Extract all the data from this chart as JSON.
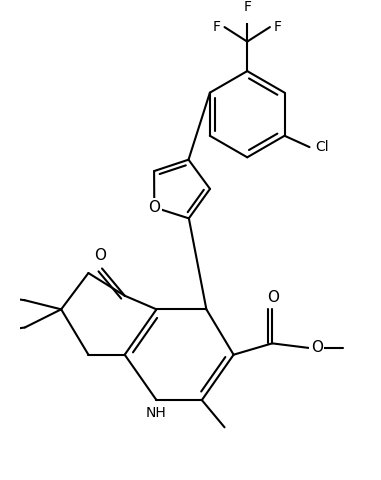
{
  "background_color": "#ffffff",
  "line_color": "#000000",
  "lw": 1.5,
  "figsize": [
    3.81,
    4.8
  ],
  "dpi": 100,
  "xlim": [
    0,
    7.5
  ],
  "ylim": [
    -9.5,
    0.5
  ],
  "fs": 10
}
